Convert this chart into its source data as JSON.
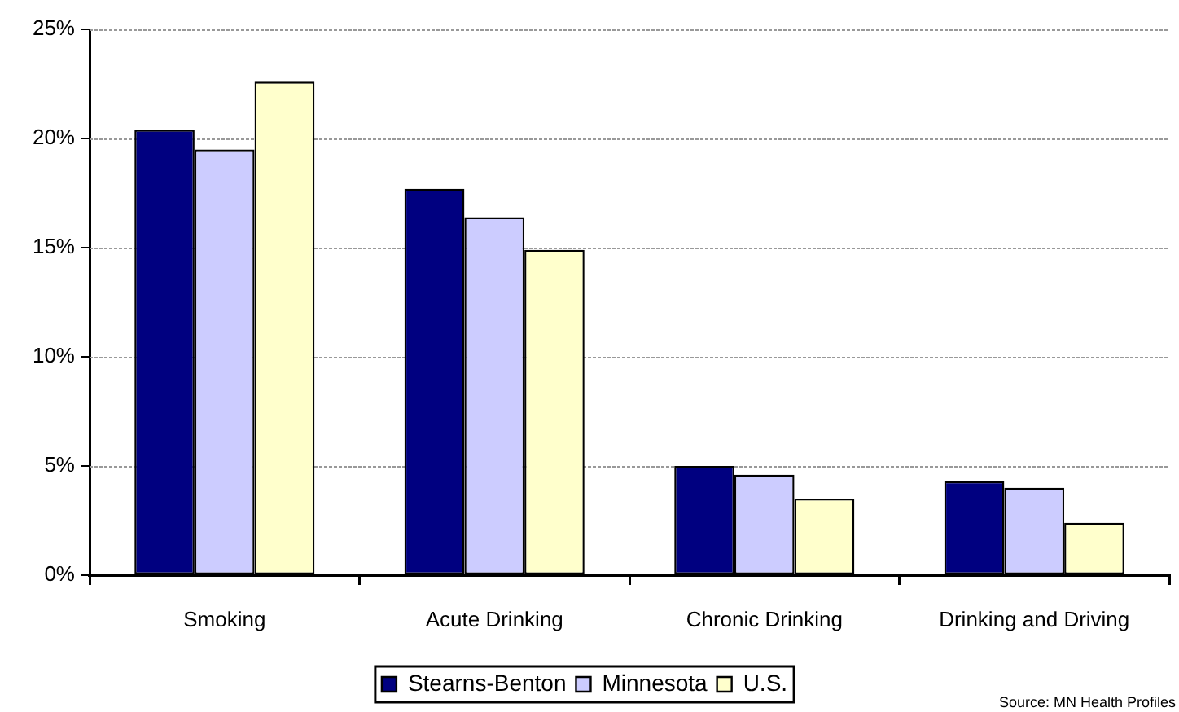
{
  "chart_data": {
    "type": "bar",
    "categories": [
      "Smoking",
      "Acute Drinking",
      "Chronic Drinking",
      "Drinking and Driving"
    ],
    "series": [
      {
        "name": "Stearns-Benton",
        "color": "#000080",
        "values": [
          20.4,
          17.7,
          5.0,
          4.3
        ]
      },
      {
        "name": "Minnesota",
        "color": "#ccccff",
        "values": [
          19.5,
          16.4,
          4.6,
          4.0
        ]
      },
      {
        "name": "U.S.",
        "color": "#ffffcc",
        "values": [
          22.6,
          14.9,
          3.5,
          2.4
        ]
      }
    ],
    "ylim": [
      0,
      25
    ],
    "yticks": [
      {
        "value": 0,
        "label": "0%"
      },
      {
        "value": 5,
        "label": "5%"
      },
      {
        "value": 10,
        "label": "10%"
      },
      {
        "value": 15,
        "label": "15%"
      },
      {
        "value": 20,
        "label": "20%"
      },
      {
        "value": 25,
        "label": "25%"
      }
    ],
    "grid": "y",
    "legend": "bottom",
    "annotations": [
      "Source: MN Health Profiles"
    ]
  }
}
